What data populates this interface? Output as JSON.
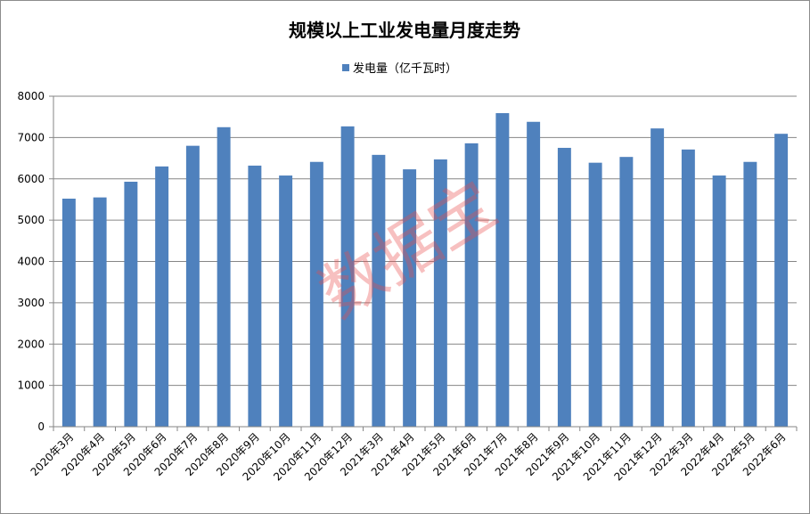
{
  "chart_data": {
    "type": "bar",
    "title": "规模以上工业发电量月度走势",
    "categories": [
      "2020年3月",
      "2020年4月",
      "2020年5月",
      "2020年6月",
      "2020年7月",
      "2020年8月",
      "2020年9月",
      "2020年10月",
      "2020年11月",
      "2020年12月",
      "2021年3月",
      "2021年4月",
      "2021年5月",
      "2021年6月",
      "2021年7月",
      "2021年8月",
      "2021年9月",
      "2021年10月",
      "2021年11月",
      "2021年12月",
      "2022年3月",
      "2022年4月",
      "2022年5月",
      "2022年6月"
    ],
    "series": [
      {
        "name": "发电量（亿千瓦时）",
        "color": "#4f81bd",
        "values": [
          5520,
          5550,
          5930,
          6300,
          6800,
          7250,
          6320,
          6080,
          6410,
          7270,
          6580,
          6230,
          6470,
          6860,
          7590,
          7380,
          6750,
          6390,
          6530,
          7220,
          6710,
          6080,
          6410,
          7090
        ]
      }
    ],
    "ylim": [
      0,
      8000
    ],
    "yticks": [
      0,
      1000,
      2000,
      3000,
      4000,
      5000,
      6000,
      7000,
      8000
    ],
    "grid": true,
    "legend_position": "top-center",
    "watermark": "数据宝"
  }
}
